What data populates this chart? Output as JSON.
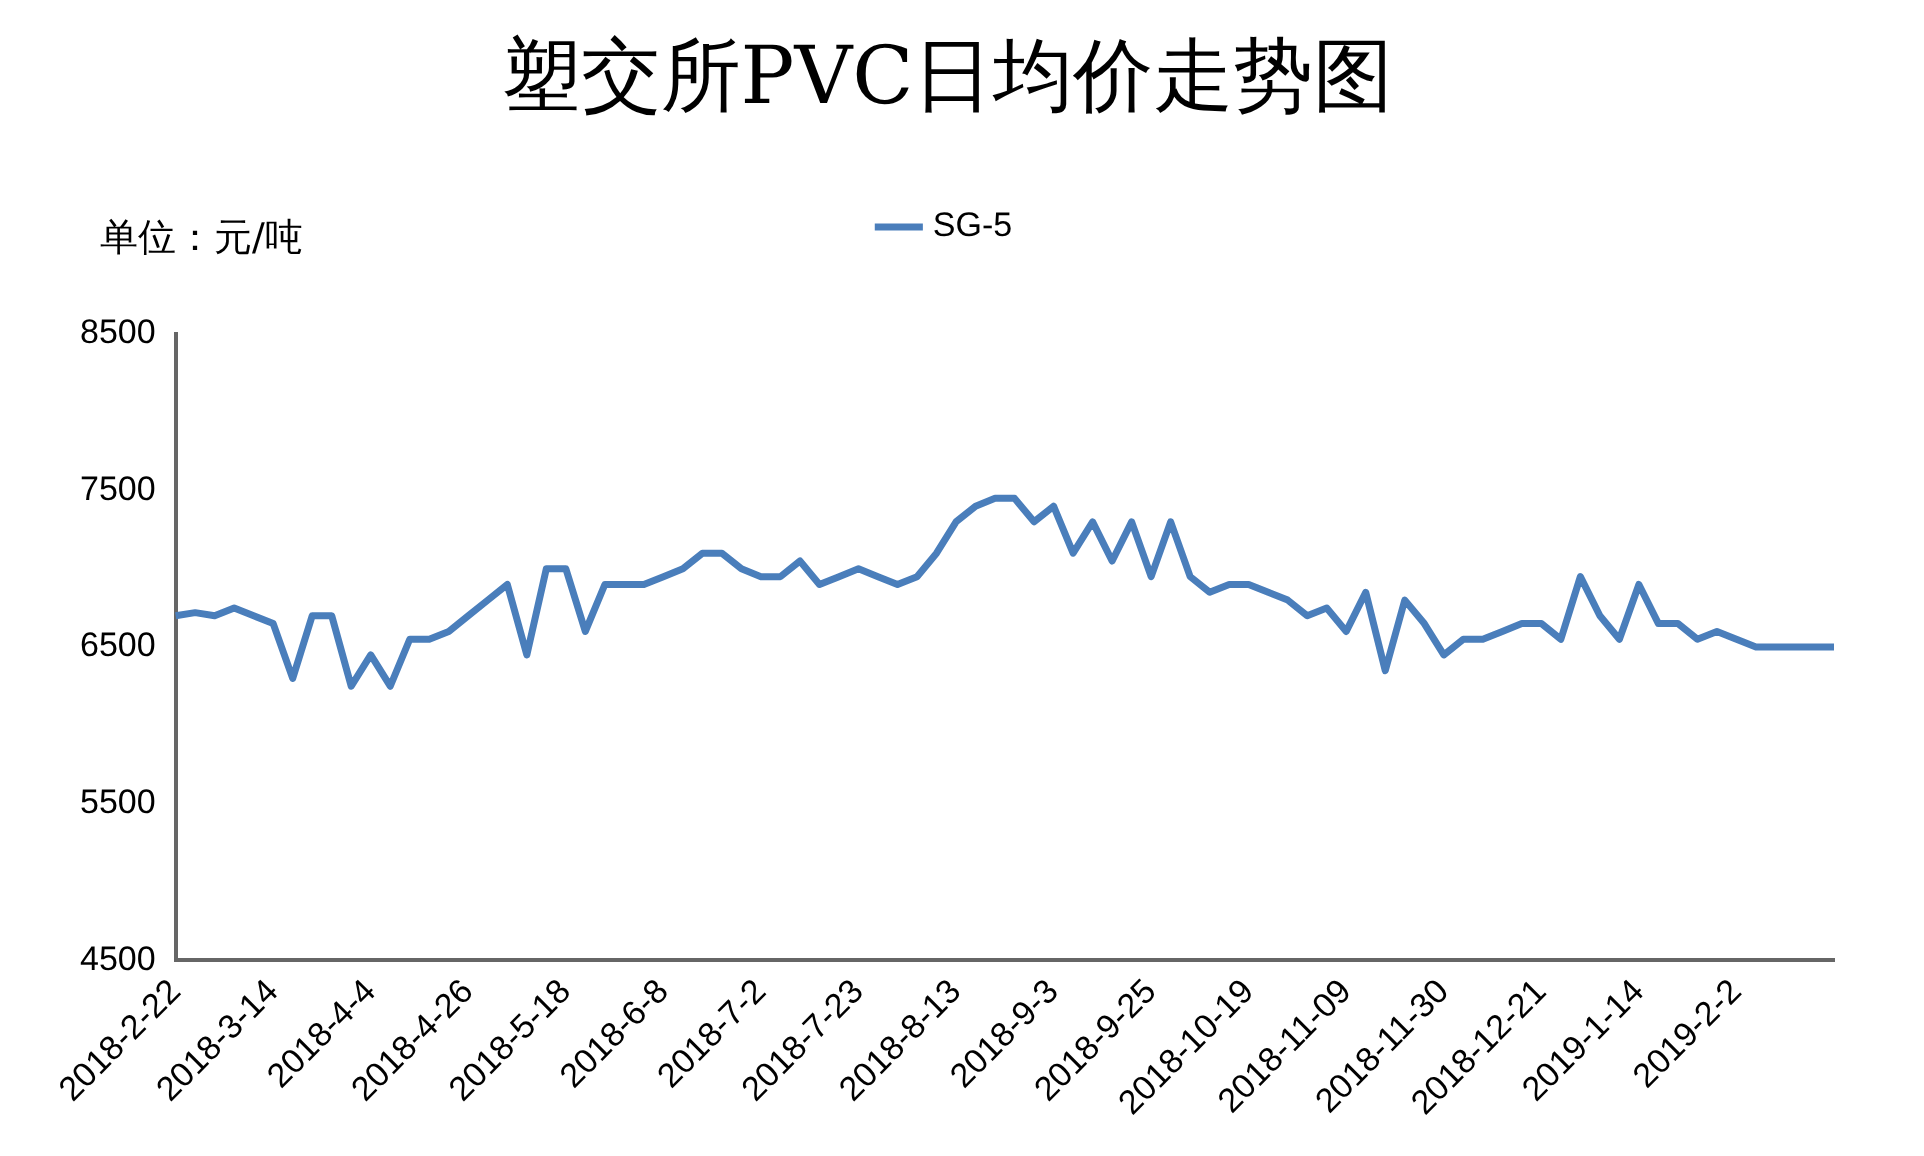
{
  "chart_data": {
    "type": "line",
    "title": "塑交所PVC日均价走势图",
    "ylabel": "单位：元/吨",
    "categories": [
      "2018-2-22",
      null,
      null,
      null,
      null,
      "2018-3-14",
      null,
      null,
      null,
      null,
      "2018-4-4",
      null,
      null,
      null,
      null,
      "2018-4-26",
      null,
      null,
      null,
      null,
      "2018-5-18",
      null,
      null,
      null,
      null,
      "2018-6-8",
      null,
      null,
      null,
      null,
      "2018-7-2",
      null,
      null,
      null,
      null,
      "2018-7-23",
      null,
      null,
      null,
      null,
      "2018-8-13",
      null,
      null,
      null,
      null,
      "2018-9-3",
      null,
      null,
      null,
      null,
      "2018-9-25",
      null,
      null,
      null,
      null,
      "2018-10-19",
      null,
      null,
      null,
      null,
      "2018-11-09",
      null,
      null,
      null,
      null,
      "2018-11-30",
      null,
      null,
      null,
      null,
      "2018-12-21",
      null,
      null,
      null,
      null,
      "2019-1-14",
      null,
      null,
      null,
      null,
      "2019-2-2",
      null,
      null,
      null,
      null,
      null
    ],
    "series": [
      {
        "name": "SG-5",
        "color": "#4a7ebb",
        "values": [
          6700,
          6720,
          6700,
          6750,
          6700,
          6650,
          6300,
          6700,
          6700,
          6250,
          6450,
          6250,
          6550,
          6550,
          6600,
          6700,
          6800,
          6900,
          6450,
          7000,
          7000,
          6600,
          6900,
          6900,
          6900,
          6950,
          7000,
          7100,
          7100,
          7000,
          6950,
          6950,
          7050,
          6900,
          6950,
          7000,
          6950,
          6900,
          6950,
          7100,
          7300,
          7400,
          7450,
          7450,
          7300,
          7400,
          7100,
          7300,
          7050,
          7300,
          6950,
          7300,
          6950,
          6850,
          6900,
          6900,
          6850,
          6800,
          6700,
          6750,
          6600,
          6850,
          6350,
          6800,
          6650,
          6450,
          6550,
          6550,
          6600,
          6650,
          6650,
          6550,
          6950,
          6700,
          6550,
          6900,
          6650,
          6650,
          6550,
          6600,
          6550,
          6500,
          6500,
          6500,
          6500,
          6500
        ]
      }
    ],
    "ylim": [
      4500,
      8500
    ],
    "yticks": [
      4500,
      5500,
      6500,
      7500,
      8500
    ],
    "grid": false,
    "legend": "top",
    "marker": "none",
    "line_style": "solid"
  }
}
